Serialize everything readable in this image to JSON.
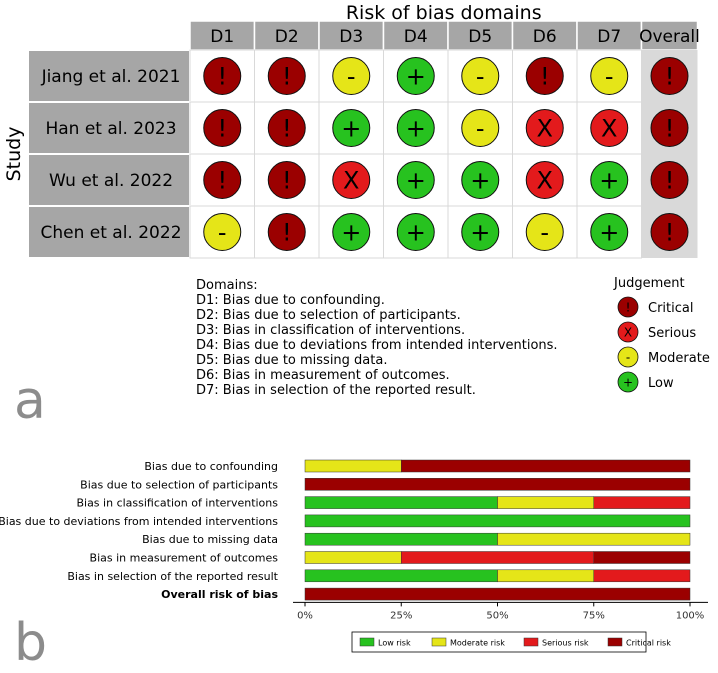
{
  "chart_data": [
    {
      "type": "table",
      "title": "Risk of bias domains",
      "ylabel": "Study",
      "columns": [
        "D1",
        "D2",
        "D3",
        "D4",
        "D5",
        "D6",
        "D7",
        "Overall"
      ],
      "rows": [
        {
          "study": "Jiang et al. 2021",
          "judgements": [
            "Critical",
            "Critical",
            "Moderate",
            "Low",
            "Moderate",
            "Critical",
            "Moderate",
            "Critical"
          ]
        },
        {
          "study": "Han et al. 2023",
          "judgements": [
            "Critical",
            "Critical",
            "Low",
            "Low",
            "Moderate",
            "Serious",
            "Serious",
            "Critical"
          ]
        },
        {
          "study": "Wu et al. 2022",
          "judgements": [
            "Critical",
            "Critical",
            "Serious",
            "Low",
            "Low",
            "Serious",
            "Low",
            "Critical"
          ]
        },
        {
          "study": "Chen et al. 2022",
          "judgements": [
            "Moderate",
            "Critical",
            "Low",
            "Low",
            "Low",
            "Moderate",
            "Low",
            "Critical"
          ]
        }
      ],
      "domains_heading": "Domains:",
      "domains": [
        "D1: Bias due to confounding.",
        "D2: Bias due to selection of participants.",
        "D3: Bias in classification of interventions.",
        "D4: Bias due to deviations from intended interventions.",
        "D5: Bias due to missing data.",
        "D6: Bias in measurement of outcomes.",
        "D7: Bias in selection of the reported result."
      ],
      "legend_title": "Judgement",
      "legend": [
        {
          "label": "Critical",
          "symbol": "!",
          "color": "#9b0000"
        },
        {
          "label": "Serious",
          "symbol": "X",
          "color": "#e31a1c"
        },
        {
          "label": "Moderate",
          "symbol": "-",
          "color": "#e5e518"
        },
        {
          "label": "Low",
          "symbol": "+",
          "color": "#27c21f"
        }
      ],
      "panel_label": "a"
    },
    {
      "type": "bar",
      "stacked": true,
      "orientation": "horizontal",
      "categories": [
        "Bias due to confounding",
        "Bias due to selection of participants",
        "Bias in classification of interventions",
        "Bias due to deviations from intended interventions",
        "Bias due to missing data",
        "Bias in measurement of outcomes",
        "Bias in selection of the reported result",
        "Overall risk of bias"
      ],
      "series": [
        {
          "name": "Low risk",
          "color": "#27c21f",
          "values": [
            0,
            0,
            50,
            100,
            50,
            0,
            50,
            0
          ]
        },
        {
          "name": "Moderate risk",
          "color": "#e5e518",
          "values": [
            25,
            0,
            25,
            0,
            50,
            25,
            25,
            0
          ]
        },
        {
          "name": "Serious risk",
          "color": "#e31a1c",
          "values": [
            0,
            0,
            25,
            0,
            0,
            50,
            25,
            0
          ]
        },
        {
          "name": "Critical risk",
          "color": "#9b0000",
          "values": [
            75,
            100,
            0,
            0,
            0,
            25,
            0,
            100
          ]
        }
      ],
      "xlim": [
        0,
        100
      ],
      "xticks": [
        "0%",
        "25%",
        "50%",
        "75%",
        "100%"
      ],
      "legend_position": "bottom",
      "panel_label": "b"
    }
  ]
}
